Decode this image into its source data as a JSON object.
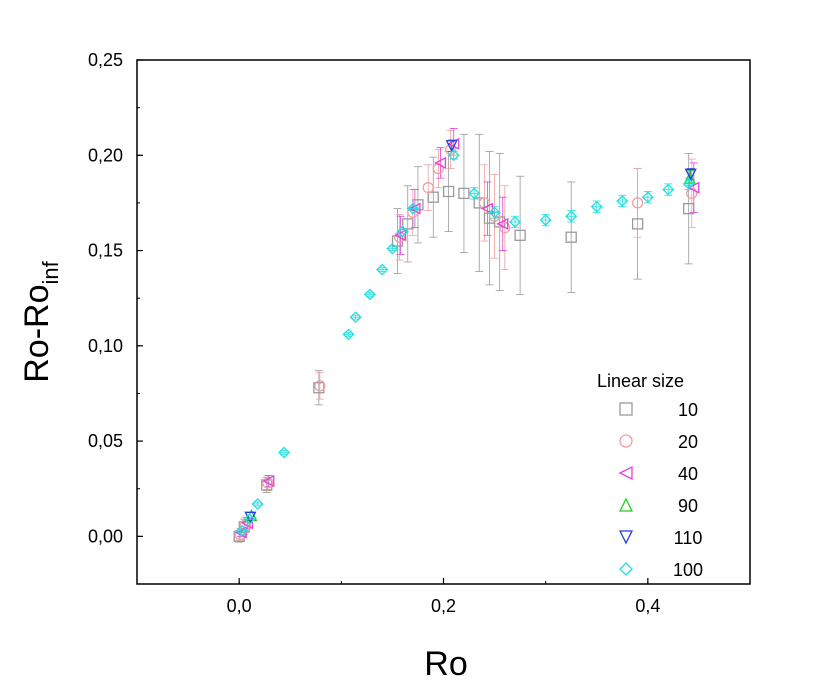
{
  "chart_data": {
    "type": "scatter",
    "xlabel": "Ro",
    "ylabel_main": "Ro-Ro",
    "ylabel_sub": "inf",
    "xlim": [
      -0.1,
      0.5
    ],
    "ylim": [
      -0.025,
      0.25
    ],
    "x_ticks": [
      0.0,
      0.2,
      0.4
    ],
    "x_tick_labels": [
      "0,0",
      "0,2",
      "0,4"
    ],
    "y_ticks": [
      0.0,
      0.05,
      0.1,
      0.15,
      0.2,
      0.25
    ],
    "y_tick_labels": [
      "0,00",
      "0,05",
      "0,10",
      "0,15",
      "0,20",
      "0,25"
    ],
    "grid": false,
    "legend": {
      "title": "Linear size",
      "placement": "bottom-right"
    },
    "series": [
      {
        "name": "10",
        "marker": "square",
        "color": "#9a9a9a",
        "points": [
          {
            "x": 0.0,
            "y": 0.0,
            "err": 0.003
          },
          {
            "x": 0.005,
            "y": 0.005,
            "err": 0.004
          },
          {
            "x": 0.027,
            "y": 0.027,
            "err": 0.004
          },
          {
            "x": 0.078,
            "y": 0.078,
            "err": 0.009
          },
          {
            "x": 0.155,
            "y": 0.155,
            "err": 0.017
          },
          {
            "x": 0.165,
            "y": 0.164,
            "err": 0.02
          },
          {
            "x": 0.175,
            "y": 0.174,
            "err": 0.02
          },
          {
            "x": 0.19,
            "y": 0.178,
            "err": 0.021
          },
          {
            "x": 0.205,
            "y": 0.181,
            "err": 0.021
          },
          {
            "x": 0.22,
            "y": 0.18,
            "err": 0.031
          },
          {
            "x": 0.235,
            "y": 0.175,
            "err": 0.036
          },
          {
            "x": 0.245,
            "y": 0.167,
            "err": 0.035
          },
          {
            "x": 0.255,
            "y": 0.165,
            "err": 0.036
          },
          {
            "x": 0.275,
            "y": 0.158,
            "err": 0.031
          },
          {
            "x": 0.325,
            "y": 0.157,
            "err": 0.029
          },
          {
            "x": 0.39,
            "y": 0.164,
            "err": 0.029
          },
          {
            "x": 0.44,
            "y": 0.172,
            "err": 0.029
          }
        ]
      },
      {
        "name": "20",
        "marker": "circle",
        "color": "#f0a0a0",
        "points": [
          {
            "x": 0.001,
            "y": 0.001,
            "err": 0.003
          },
          {
            "x": 0.006,
            "y": 0.006,
            "err": 0.004
          },
          {
            "x": 0.028,
            "y": 0.028,
            "err": 0.004
          },
          {
            "x": 0.079,
            "y": 0.079,
            "err": 0.007
          },
          {
            "x": 0.157,
            "y": 0.157,
            "err": 0.012
          },
          {
            "x": 0.17,
            "y": 0.17,
            "err": 0.012
          },
          {
            "x": 0.185,
            "y": 0.183,
            "err": 0.012
          },
          {
            "x": 0.195,
            "y": 0.193,
            "err": 0.01
          },
          {
            "x": 0.207,
            "y": 0.203,
            "err": 0.01
          },
          {
            "x": 0.24,
            "y": 0.175,
            "err": 0.02
          },
          {
            "x": 0.25,
            "y": 0.168,
            "err": 0.022
          },
          {
            "x": 0.26,
            "y": 0.162,
            "err": 0.022
          },
          {
            "x": 0.39,
            "y": 0.175,
            "err": 0.018
          },
          {
            "x": 0.443,
            "y": 0.18,
            "err": 0.018
          }
        ]
      },
      {
        "name": "40",
        "marker": "triangle-left",
        "color": "#e040e0",
        "points": [
          {
            "x": 0.002,
            "y": 0.002,
            "err": 0.002
          },
          {
            "x": 0.008,
            "y": 0.007,
            "err": 0.003
          },
          {
            "x": 0.029,
            "y": 0.029,
            "err": 0.003
          },
          {
            "x": 0.158,
            "y": 0.158,
            "err": 0.01
          },
          {
            "x": 0.172,
            "y": 0.172,
            "err": 0.01
          },
          {
            "x": 0.197,
            "y": 0.196,
            "err": 0.008
          },
          {
            "x": 0.21,
            "y": 0.206,
            "err": 0.008
          },
          {
            "x": 0.243,
            "y": 0.172,
            "err": 0.014
          },
          {
            "x": 0.258,
            "y": 0.164,
            "err": 0.014
          },
          {
            "x": 0.445,
            "y": 0.183,
            "err": 0.013
          }
        ]
      },
      {
        "name": "90",
        "marker": "triangle-up",
        "color": "#20d020",
        "points": [
          {
            "x": 0.012,
            "y": 0.011,
            "err": 0.0
          },
          {
            "x": 0.441,
            "y": 0.188,
            "err": 0.004
          }
        ]
      },
      {
        "name": "110",
        "marker": "triangle-down",
        "color": "#2040e0",
        "points": [
          {
            "x": 0.011,
            "y": 0.01,
            "err": 0.0
          },
          {
            "x": 0.208,
            "y": 0.205,
            "err": 0.003
          },
          {
            "x": 0.442,
            "y": 0.19,
            "err": 0.003
          }
        ]
      },
      {
        "name": "100",
        "marker": "diamond",
        "color": "#20e0e0",
        "points": [
          {
            "x": 0.003,
            "y": 0.003,
            "err": 0.001
          },
          {
            "x": 0.01,
            "y": 0.009,
            "err": 0.001
          },
          {
            "x": 0.018,
            "y": 0.017,
            "err": 0.001
          },
          {
            "x": 0.044,
            "y": 0.044,
            "err": 0.001
          },
          {
            "x": 0.107,
            "y": 0.106,
            "err": 0.001
          },
          {
            "x": 0.114,
            "y": 0.115,
            "err": 0.001
          },
          {
            "x": 0.128,
            "y": 0.127,
            "err": 0.001
          },
          {
            "x": 0.14,
            "y": 0.14,
            "err": 0.001
          },
          {
            "x": 0.15,
            "y": 0.151,
            "err": 0.001
          },
          {
            "x": 0.16,
            "y": 0.16,
            "err": 0.001
          },
          {
            "x": 0.17,
            "y": 0.172,
            "err": 0.001
          },
          {
            "x": 0.21,
            "y": 0.2,
            "err": 0.002
          },
          {
            "x": 0.23,
            "y": 0.18,
            "err": 0.003
          },
          {
            "x": 0.25,
            "y": 0.17,
            "err": 0.003
          },
          {
            "x": 0.27,
            "y": 0.165,
            "err": 0.003
          },
          {
            "x": 0.3,
            "y": 0.166,
            "err": 0.003
          },
          {
            "x": 0.325,
            "y": 0.168,
            "err": 0.003
          },
          {
            "x": 0.35,
            "y": 0.173,
            "err": 0.003
          },
          {
            "x": 0.375,
            "y": 0.176,
            "err": 0.003
          },
          {
            "x": 0.4,
            "y": 0.178,
            "err": 0.003
          },
          {
            "x": 0.42,
            "y": 0.182,
            "err": 0.003
          },
          {
            "x": 0.44,
            "y": 0.185,
            "err": 0.003
          }
        ]
      }
    ]
  }
}
